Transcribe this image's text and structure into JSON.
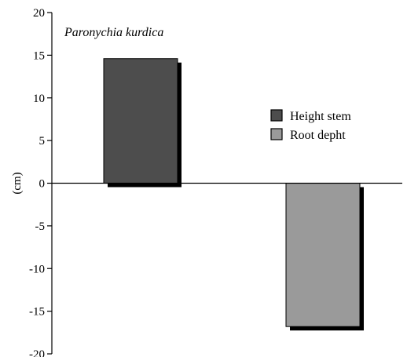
{
  "chart_data": {
    "type": "bar",
    "categories": [
      "",
      ""
    ],
    "series": [
      {
        "name": "Height stem",
        "values": [
          14.6,
          null
        ],
        "color": "#4d4d4d"
      },
      {
        "name": "Root depht",
        "values": [
          null,
          -16.8
        ],
        "color": "#9a9a9a"
      }
    ],
    "annotation": "Paronychia kurdica",
    "title": "",
    "xlabel": "",
    "ylabel": "(cm)",
    "ylim": [
      -20,
      20
    ],
    "yticks": [
      20,
      15,
      10,
      5,
      0,
      -5,
      -10,
      -15,
      -20
    ],
    "ytick_labels": [
      "20",
      "15",
      "10",
      "5",
      "0",
      "-5",
      "-10",
      "-15",
      "-20"
    ],
    "grid": false,
    "legend_position": "right",
    "shadow_color": "#000000",
    "axis_color": "#000000"
  }
}
